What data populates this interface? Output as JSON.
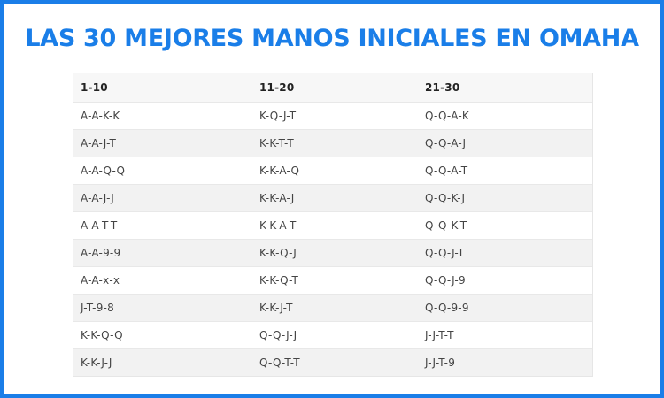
{
  "title": "LAS 30 MEJORES MANOS INICIALES EN OMAHA",
  "colors": {
    "accent": "#1a7ee8",
    "row_alt": "#f2f2f2",
    "header_bg": "#f7f7f7"
  },
  "table": {
    "headers": [
      "1-10",
      "11-20",
      "21-30"
    ],
    "rows": [
      [
        "A-A-K-K",
        "K-Q-J-T",
        "Q-Q-A-K"
      ],
      [
        "A-A-J-T",
        "K-K-T-T",
        "Q-Q-A-J"
      ],
      [
        "A-A-Q-Q",
        "K-K-A-Q",
        "Q-Q-A-T"
      ],
      [
        "A-A-J-J",
        "K-K-A-J",
        "Q-Q-K-J"
      ],
      [
        "A-A-T-T",
        "K-K-A-T",
        "Q-Q-K-T"
      ],
      [
        "A-A-9-9",
        "K-K-Q-J",
        "Q-Q-J-T"
      ],
      [
        "A-A-x-x",
        "K-K-Q-T",
        "Q-Q-J-9"
      ],
      [
        "J-T-9-8",
        "K-K-J-T",
        "Q-Q-9-9"
      ],
      [
        "K-K-Q-Q",
        "Q-Q-J-J",
        "J-J-T-T"
      ],
      [
        "K-K-J-J",
        "Q-Q-T-T",
        "J-J-T-9"
      ]
    ]
  }
}
